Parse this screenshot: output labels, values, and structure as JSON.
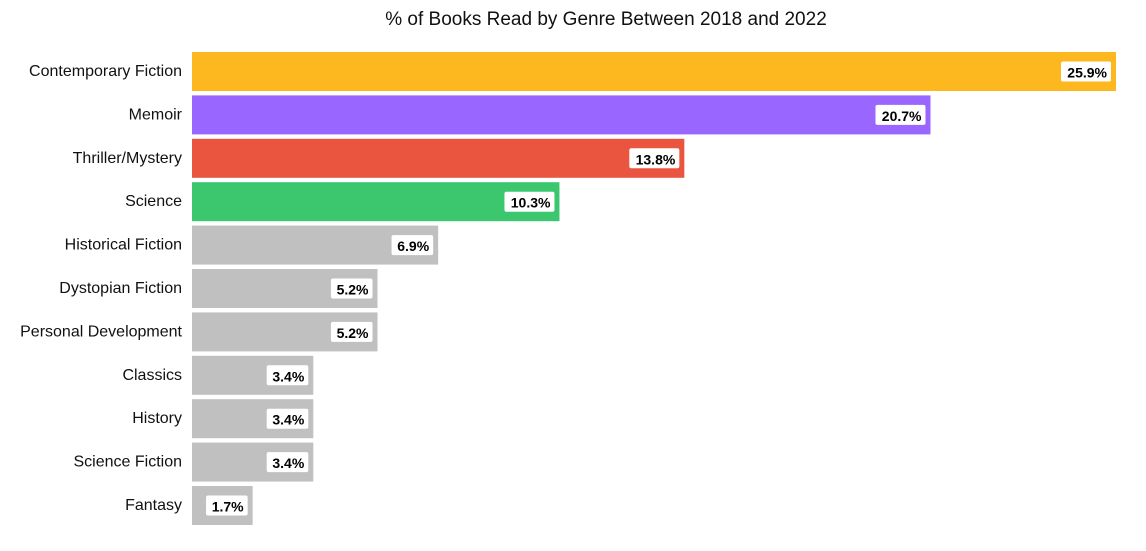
{
  "chart_data": {
    "type": "bar",
    "orientation": "horizontal",
    "title": "% of Books Read by Genre Between 2018 and 2022",
    "xlabel": "",
    "ylabel": "",
    "xlim": [
      0,
      25.9
    ],
    "grid": false,
    "legend": "none",
    "categories": [
      "Contemporary Fiction",
      "Memoir",
      "Thriller/Mystery",
      "Science",
      "Historical Fiction",
      "Dystopian Fiction",
      "Personal Development",
      "Classics",
      "History",
      "Science Fiction",
      "Fantasy"
    ],
    "values": [
      25.9,
      20.7,
      13.8,
      10.3,
      6.9,
      5.2,
      5.2,
      3.4,
      3.4,
      3.4,
      1.7
    ],
    "value_labels": [
      "25.9%",
      "20.7%",
      "13.8%",
      "10.3%",
      "6.9%",
      "5.2%",
      "5.2%",
      "3.4%",
      "3.4%",
      "3.4%",
      "1.7%"
    ],
    "colors": [
      "#FDB71F",
      "#9966FF",
      "#EA5540",
      "#3CC76E",
      "#C0C0C0",
      "#C0C0C0",
      "#C0C0C0",
      "#C0C0C0",
      "#C0C0C0",
      "#C0C0C0",
      "#C0C0C0"
    ]
  }
}
